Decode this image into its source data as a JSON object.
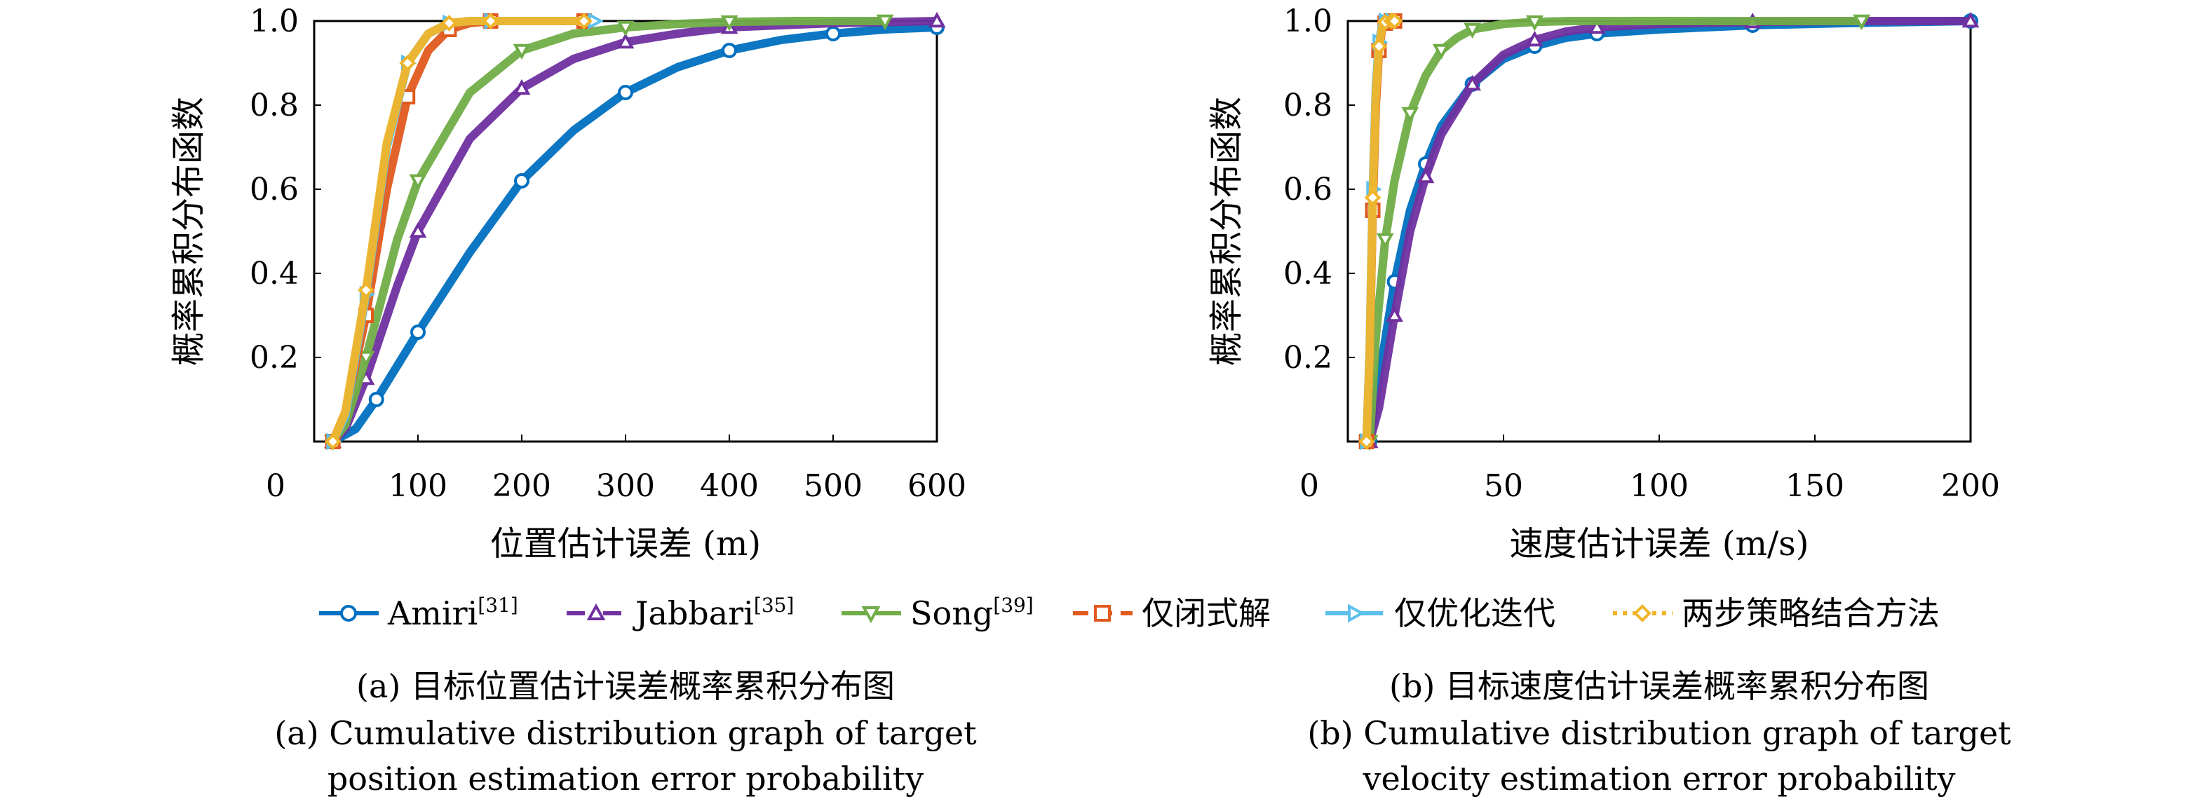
{
  "charts": [
    {
      "id": "a",
      "type": "line",
      "ylabel": "概率累积分布函数",
      "xlabel": "位置估计误差 (m)",
      "xlim": [
        0,
        600
      ],
      "ylim": [
        0,
        1.0
      ],
      "xticks": [
        0,
        100,
        200,
        300,
        400,
        500,
        600
      ],
      "yticks": [
        0.2,
        0.4,
        0.6,
        0.8,
        1.0
      ],
      "caption_cn": "(a) 目标位置估计误差概率累积分布图",
      "caption_en_1": "(a) Cumulative distribution graph of target",
      "caption_en_2": "position estimation error probability",
      "series": [
        {
          "name": "Amiri[31]",
          "x": [
            18,
            40,
            60,
            80,
            100,
            150,
            200,
            250,
            300,
            350,
            400,
            450,
            500,
            550,
            600
          ],
          "y": [
            0,
            0.03,
            0.1,
            0.18,
            0.26,
            0.45,
            0.62,
            0.74,
            0.83,
            0.89,
            0.93,
            0.955,
            0.97,
            0.98,
            0.985
          ]
        },
        {
          "name": "Jabbari[35]",
          "x": [
            18,
            30,
            50,
            80,
            100,
            150,
            200,
            250,
            300,
            350,
            400,
            500,
            600
          ],
          "y": [
            0,
            0.03,
            0.15,
            0.37,
            0.5,
            0.72,
            0.84,
            0.91,
            0.95,
            0.97,
            0.985,
            0.995,
            1.0
          ]
        },
        {
          "name": "Song[39]",
          "x": [
            18,
            30,
            50,
            80,
            100,
            150,
            200,
            250,
            300,
            350,
            400,
            460,
            550
          ],
          "y": [
            0,
            0.04,
            0.2,
            0.48,
            0.62,
            0.83,
            0.93,
            0.97,
            0.985,
            0.993,
            0.998,
            1.0,
            1.0
          ]
        },
        {
          "name": "仅闭式解",
          "x": [
            18,
            30,
            50,
            70,
            90,
            110,
            130,
            150,
            170,
            200,
            260
          ],
          "y": [
            0,
            0.07,
            0.3,
            0.6,
            0.82,
            0.93,
            0.98,
            0.995,
            1.0,
            1.0,
            1.0
          ]
        },
        {
          "name": "仅优化迭代",
          "x": [
            18,
            30,
            50,
            70,
            90,
            110,
            130,
            150,
            170,
            200,
            270
          ],
          "y": [
            0,
            0.06,
            0.35,
            0.7,
            0.9,
            0.97,
            0.995,
            1.0,
            1.0,
            1.0,
            1.0
          ]
        },
        {
          "name": "两步策略结合方法",
          "x": [
            18,
            30,
            50,
            70,
            90,
            110,
            130,
            150,
            170,
            200,
            260
          ],
          "y": [
            0,
            0.07,
            0.36,
            0.71,
            0.9,
            0.97,
            0.995,
            1.0,
            1.0,
            1.0,
            1.0
          ]
        }
      ]
    },
    {
      "id": "b",
      "type": "line",
      "ylabel": "概率累积分布函数",
      "xlabel": "速度估计误差 (m/s)",
      "xlim": [
        0,
        200
      ],
      "ylim": [
        0,
        1.0
      ],
      "xticks": [
        0,
        50,
        100,
        150,
        200
      ],
      "yticks": [
        0.2,
        0.4,
        0.6,
        0.8,
        1.0
      ],
      "caption_cn": "(b) 目标速度估计误差概率累积分布图",
      "caption_en_1": "(b) Cumulative distribution graph of target",
      "caption_en_2": "velocity estimation error probability",
      "series": [
        {
          "name": "Amiri[31]",
          "x": [
            7,
            10,
            15,
            20,
            25,
            30,
            40,
            50,
            60,
            70,
            80,
            100,
            130,
            160,
            200
          ],
          "y": [
            0,
            0.15,
            0.38,
            0.55,
            0.66,
            0.75,
            0.85,
            0.91,
            0.94,
            0.96,
            0.97,
            0.98,
            0.99,
            0.995,
            1.0
          ]
        },
        {
          "name": "Jabbari[35]",
          "x": [
            7,
            10,
            15,
            20,
            25,
            30,
            40,
            50,
            60,
            70,
            80,
            100,
            130,
            165,
            200
          ],
          "y": [
            0,
            0.08,
            0.3,
            0.5,
            0.63,
            0.73,
            0.85,
            0.92,
            0.955,
            0.975,
            0.985,
            0.993,
            0.998,
            1.0,
            1.0
          ]
        },
        {
          "name": "Song[39]",
          "x": [
            7,
            9,
            12,
            15,
            20,
            25,
            30,
            35,
            40,
            50,
            60,
            72,
            165
          ],
          "y": [
            0,
            0.25,
            0.48,
            0.62,
            0.78,
            0.87,
            0.93,
            0.96,
            0.98,
            0.993,
            0.998,
            1.0,
            1.0
          ]
        },
        {
          "name": "仅闭式解",
          "x": [
            6,
            7,
            8,
            9,
            10,
            11,
            12,
            13,
            14,
            15
          ],
          "y": [
            0,
            0.2,
            0.55,
            0.8,
            0.93,
            0.98,
            0.995,
            1.0,
            1.0,
            1.0
          ]
        },
        {
          "name": "仅优化迭代",
          "x": [
            6,
            7,
            8,
            9,
            10,
            11,
            12,
            13,
            14
          ],
          "y": [
            0,
            0.22,
            0.6,
            0.85,
            0.95,
            0.99,
            1.0,
            1.0,
            1.0
          ]
        },
        {
          "name": "两步策略结合方法",
          "x": [
            6,
            7,
            8,
            9,
            10,
            11,
            12,
            13,
            14,
            15
          ],
          "y": [
            0,
            0.21,
            0.58,
            0.83,
            0.94,
            0.985,
            0.997,
            1.0,
            1.0,
            1.0
          ]
        }
      ]
    }
  ],
  "legend": [
    {
      "name": "Amiri",
      "sup": "[31]",
      "color": "#0070c0",
      "marker": "circle",
      "dash": "solid"
    },
    {
      "name": "Jabbari",
      "sup": "[35]",
      "color": "#7030a0",
      "marker": "triangle-up",
      "dash": "dashdot"
    },
    {
      "name": "Song",
      "sup": "[39]",
      "color": "#70ad47",
      "marker": "triangle-down",
      "dash": "solid"
    },
    {
      "name": "仅闭式解",
      "sup": "",
      "color": "#e05a1e",
      "marker": "square",
      "dash": "dash"
    },
    {
      "name": "仅优化迭代",
      "sup": "",
      "color": "#5bc0eb",
      "marker": "triangle-right",
      "dash": "longdash"
    },
    {
      "name": "两步策略结合方法",
      "sup": "",
      "color": "#f0b429",
      "marker": "diamond",
      "dash": "dot"
    }
  ]
}
